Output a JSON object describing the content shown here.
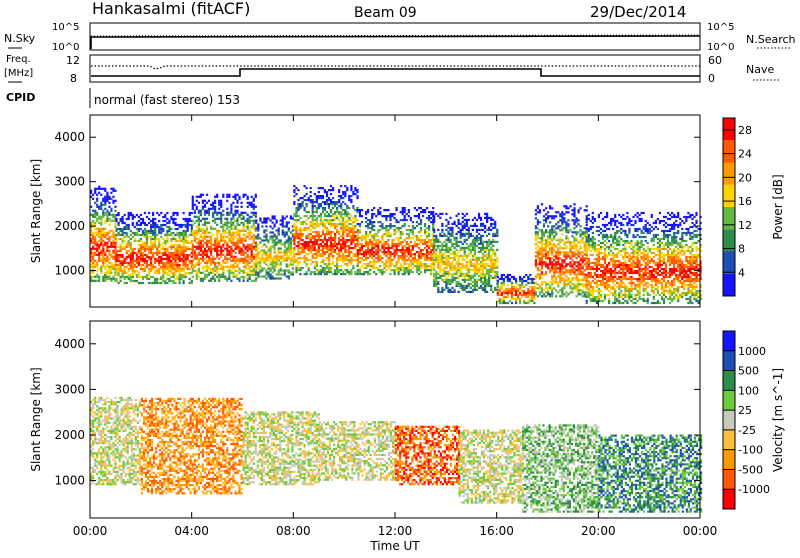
{
  "header": {
    "station": "Hankasalmi (fitACF)",
    "beam": "Beam 09",
    "date": "29/Dec/2014"
  },
  "top_panel": {
    "left_label": "N.Sky",
    "left_ticks": [
      "10^5",
      "10^0"
    ],
    "right_label": "N.Search",
    "right_ticks": [
      "10^5",
      "10^0"
    ]
  },
  "freq_panel": {
    "left_label_1": "Freq.",
    "left_label_2": "[MHz]",
    "left_ticks": [
      "12",
      "8"
    ],
    "right_label": "Nave",
    "right_ticks": [
      "60",
      "0"
    ]
  },
  "cpid": {
    "label": "CPID",
    "mode": "normal (fast stereo) 153"
  },
  "colors": {
    "power_scale": [
      "#1414ff",
      "#1e4fb4",
      "#2f8c4a",
      "#62b840",
      "#ffd200",
      "#ff9a00",
      "#ff5a00",
      "#ff0000"
    ],
    "velocity_scale": [
      "#ff0000",
      "#ff5a00",
      "#ff9a00",
      "#ffbf3c",
      "#c8c8be",
      "#6ccc3c",
      "#2f8c4a",
      "#1e4fb4",
      "#1414ff"
    ],
    "ground_scatter": "#c8c8be"
  },
  "chart_data": [
    {
      "type": "heatmap",
      "title": "",
      "xlabel": "Time UT",
      "ylabel": "Slant Range [km]",
      "xlim": [
        "00:00",
        "00:00"
      ],
      "x_ticks": [
        "00:00",
        "04:00",
        "08:00",
        "12:00",
        "16:00",
        "20:00",
        "00:00"
      ],
      "ylim": [
        180,
        4500
      ],
      "y_ticks": [
        1000,
        2000,
        3000,
        4000
      ],
      "colorbar": {
        "label": "Power [dB]",
        "ticks": [
          4,
          8,
          12,
          16,
          20,
          24,
          28
        ],
        "range": [
          0,
          30
        ]
      },
      "regions": [
        {
          "start": "00:00",
          "end": "01:00",
          "min_km": 750,
          "max_km": 2900,
          "peak_db": 28
        },
        {
          "start": "01:00",
          "end": "04:00",
          "min_km": 700,
          "max_km": 2300,
          "peak_db": 28
        },
        {
          "start": "04:00",
          "end": "06:30",
          "min_km": 750,
          "max_km": 2700,
          "peak_db": 28
        },
        {
          "start": "06:30",
          "end": "08:00",
          "min_km": 800,
          "max_km": 2200,
          "peak_db": 18
        },
        {
          "start": "08:00",
          "end": "10:30",
          "min_km": 900,
          "max_km": 2900,
          "peak_db": 28
        },
        {
          "start": "10:30",
          "end": "13:30",
          "min_km": 900,
          "max_km": 2400,
          "peak_db": 28
        },
        {
          "start": "13:30",
          "end": "16:00",
          "min_km": 500,
          "max_km": 2300,
          "peak_db": 18
        },
        {
          "start": "16:00",
          "end": "17:30",
          "min_km": 250,
          "max_km": 900,
          "peak_db": 28
        },
        {
          "start": "17:30",
          "end": "19:30",
          "min_km": 400,
          "max_km": 2500,
          "peak_db": 28
        },
        {
          "start": "19:30",
          "end": "24:00",
          "min_km": 250,
          "max_km": 2300,
          "peak_db": 28
        }
      ]
    },
    {
      "type": "heatmap",
      "title": "",
      "xlabel": "Time UT",
      "ylabel": "Slant Range [km]",
      "xlim": [
        "00:00",
        "00:00"
      ],
      "x_ticks": [
        "00:00",
        "04:00",
        "08:00",
        "12:00",
        "16:00",
        "20:00",
        "00:00"
      ],
      "ylim": [
        180,
        4500
      ],
      "y_ticks": [
        1000,
        2000,
        3000,
        4000
      ],
      "colorbar": {
        "label": "Velocity [m s^-1]",
        "ticks": [
          1000,
          500,
          100,
          25,
          -25,
          -100,
          -500,
          -1000
        ]
      },
      "regions": [
        {
          "start": "00:00",
          "end": "02:00",
          "min_km": 900,
          "max_km": 2800,
          "dominant": "ground scatter"
        },
        {
          "start": "02:00",
          "end": "06:00",
          "min_km": 700,
          "max_km": 2800,
          "dominant": "-100"
        },
        {
          "start": "06:00",
          "end": "09:00",
          "min_km": 900,
          "max_km": 2500,
          "dominant": "ground scatter"
        },
        {
          "start": "09:00",
          "end": "12:00",
          "min_km": 1000,
          "max_km": 2300,
          "dominant": "ground scatter"
        },
        {
          "start": "12:00",
          "end": "14:30",
          "min_km": 900,
          "max_km": 2200,
          "dominant": "-500"
        },
        {
          "start": "14:30",
          "end": "17:00",
          "min_km": 500,
          "max_km": 2100,
          "dominant": "ground scatter"
        },
        {
          "start": "17:00",
          "end": "20:00",
          "min_km": 300,
          "max_km": 2200,
          "dominant": "100"
        },
        {
          "start": "20:00",
          "end": "24:00",
          "min_km": 300,
          "max_km": 2000,
          "dominant": "500"
        }
      ]
    }
  ]
}
